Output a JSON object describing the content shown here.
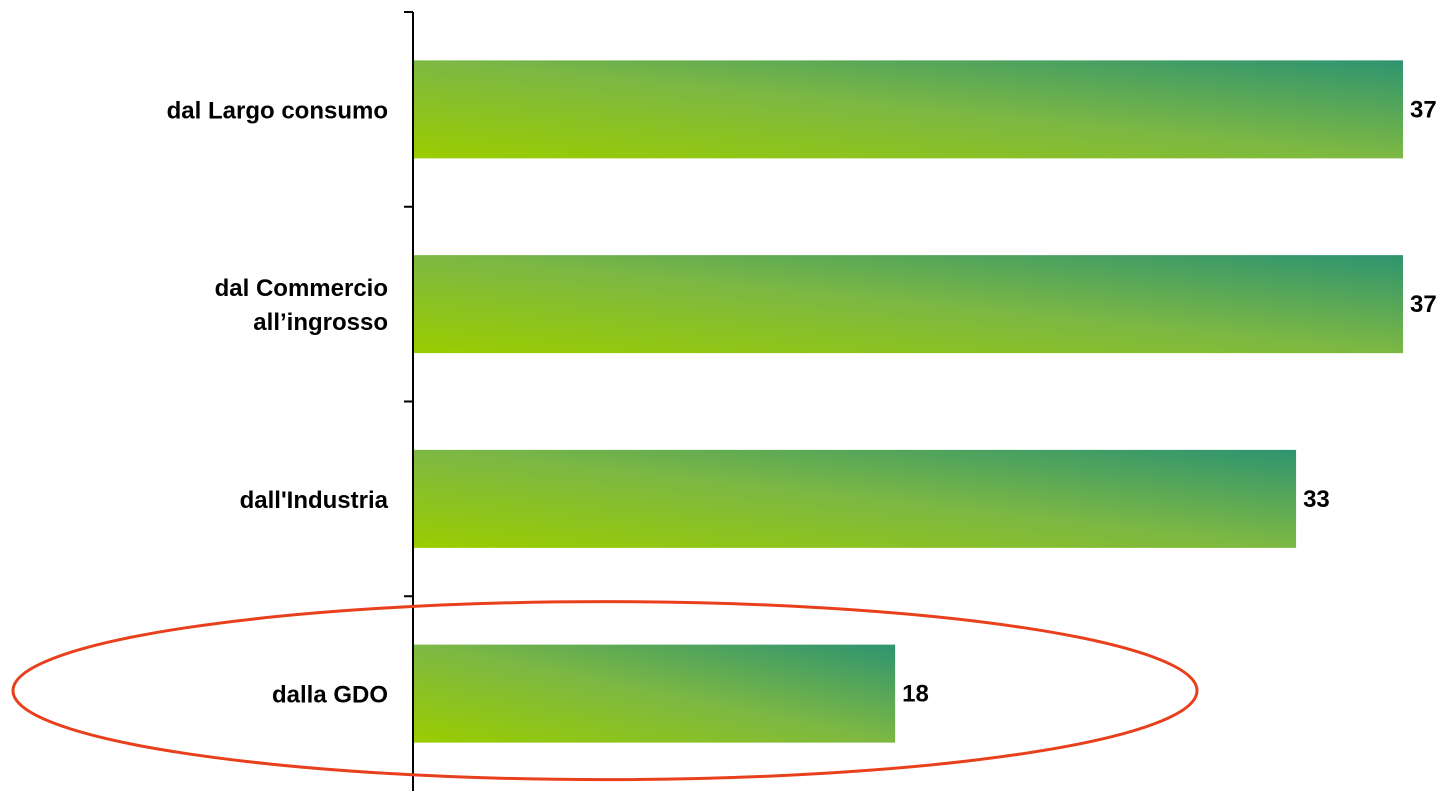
{
  "chart_data": {
    "type": "bar",
    "orientation": "horizontal",
    "categories": [
      [
        "dal Largo consumo"
      ],
      [
        "dal Commercio",
        "all’ingrosso"
      ],
      [
        "dall'Industria"
      ],
      [
        "dalla GDO"
      ]
    ],
    "values": [
      37,
      37,
      33,
      18
    ],
    "value_labels": [
      "37",
      "37",
      "33",
      "18"
    ],
    "title": "",
    "xlabel": "",
    "ylabel": "",
    "grid": false,
    "legend": "none",
    "highlighted_category": "dalla GDO",
    "colors": {
      "bar_gradient_start": "#9ACD00",
      "bar_gradient_mid": "#7DB843",
      "bar_gradient_end": "#2E9470",
      "highlight_ellipse": "#E8401C",
      "axis": "#000000",
      "text": "#000000"
    }
  }
}
